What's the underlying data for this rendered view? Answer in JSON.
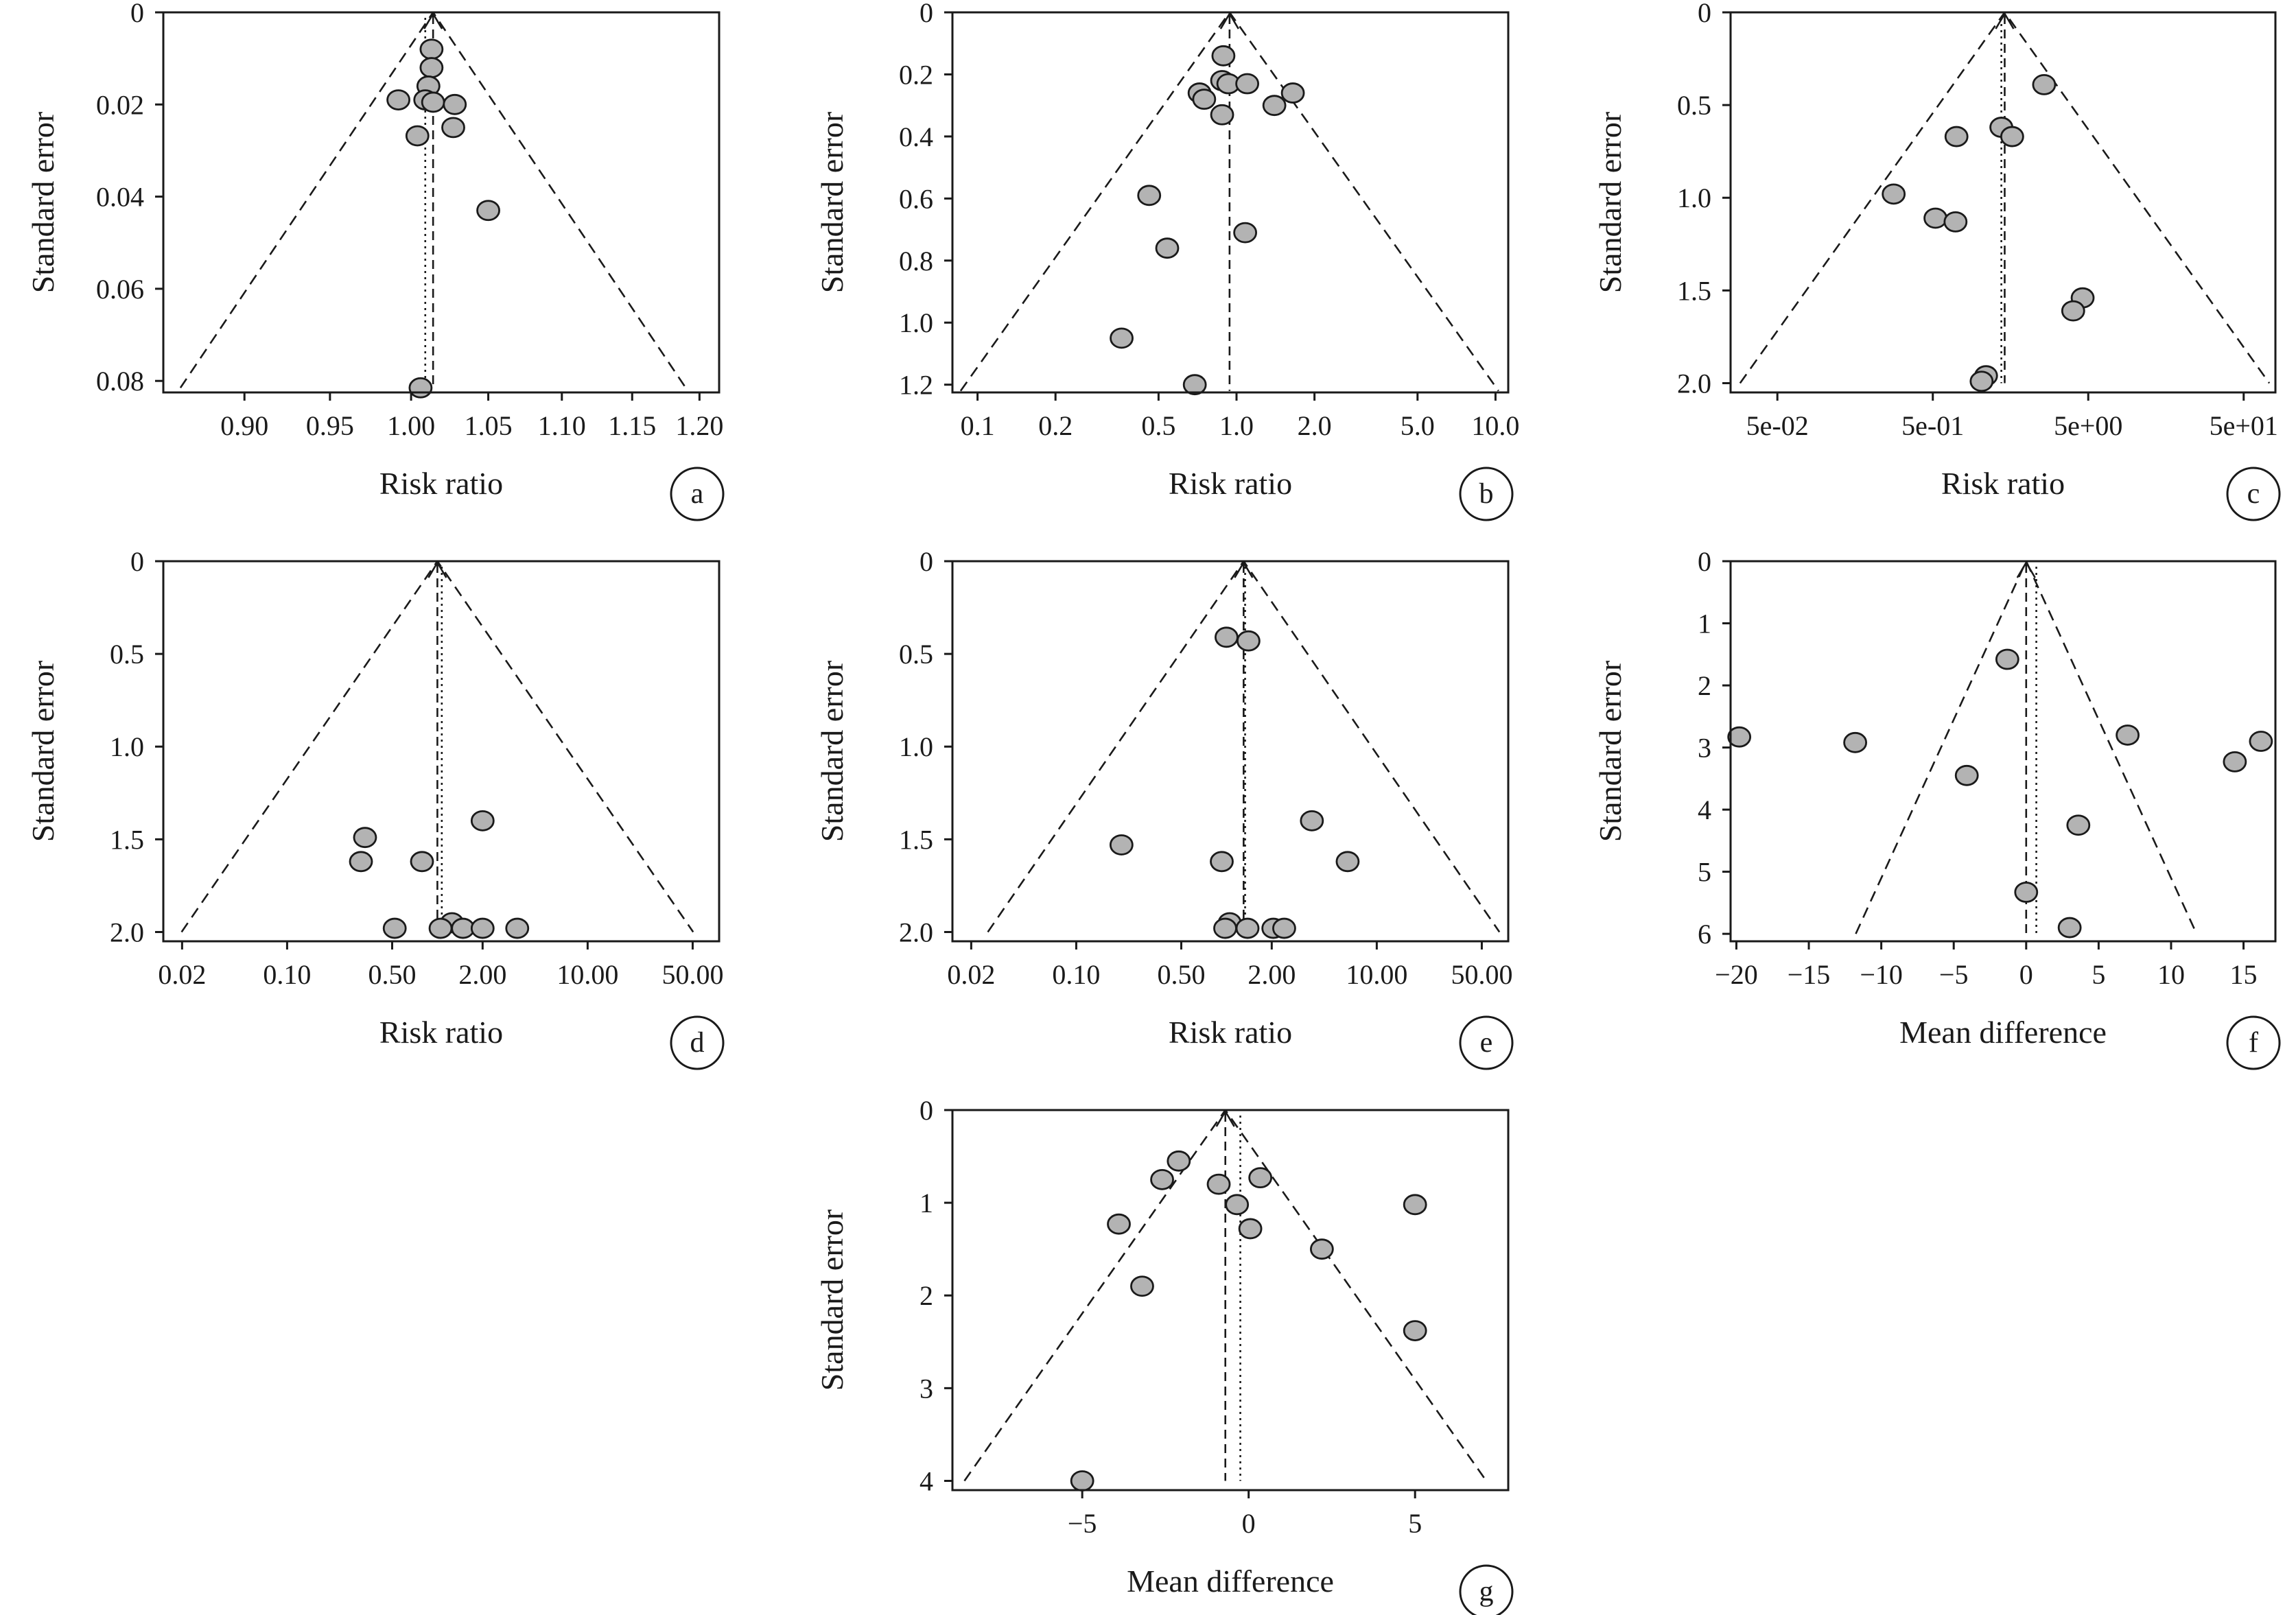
{
  "chart_data": [
    {
      "id": "a",
      "type": "scatter",
      "panel_label": "a",
      "xlabel": "Risk ratio",
      "ylabel": "Standard error",
      "x_scale": "log",
      "xlim": [
        0.855,
        1.215
      ],
      "ylim": [
        0,
        0.0825
      ],
      "x_ticks": [
        {
          "v": 0.9,
          "label": "0.90"
        },
        {
          "v": 0.95,
          "label": "0.95"
        },
        {
          "v": 1.0,
          "label": "1.00"
        },
        {
          "v": 1.05,
          "label": "1.05"
        },
        {
          "v": 1.1,
          "label": "1.10"
        },
        {
          "v": 1.15,
          "label": "1.15"
        },
        {
          "v": 1.2,
          "label": "1.20"
        }
      ],
      "y_ticks": [
        {
          "v": 0,
          "label": "0"
        },
        {
          "v": 0.02,
          "label": "0.02"
        },
        {
          "v": 0.04,
          "label": "0.04"
        },
        {
          "v": 0.06,
          "label": "0.06"
        },
        {
          "v": 0.08,
          "label": "0.08"
        }
      ],
      "pooled": 1.014,
      "fixed": 1.009,
      "funnel_bottom_se": 0.0815,
      "points": [
        [
          1.013,
          0.008
        ],
        [
          1.013,
          0.012
        ],
        [
          1.011,
          0.016
        ],
        [
          0.992,
          0.019
        ],
        [
          1.009,
          0.019
        ],
        [
          1.014,
          0.0195
        ],
        [
          1.028,
          0.02
        ],
        [
          1.027,
          0.025
        ],
        [
          1.004,
          0.0268
        ],
        [
          1.05,
          0.043
        ],
        [
          1.006,
          0.0815
        ]
      ]
    },
    {
      "id": "b",
      "type": "scatter",
      "panel_label": "b",
      "xlabel": "Risk ratio",
      "ylabel": "Standard error",
      "x_scale": "log",
      "xlim": [
        0.08,
        11.2
      ],
      "ylim": [
        0,
        1.225
      ],
      "x_ticks": [
        {
          "v": 0.1,
          "label": "0.1"
        },
        {
          "v": 0.2,
          "label": "0.2"
        },
        {
          "v": 0.5,
          "label": "0.5"
        },
        {
          "v": 1.0,
          "label": "1.0"
        },
        {
          "v": 2.0,
          "label": "2.0"
        },
        {
          "v": 5.0,
          "label": "5.0"
        },
        {
          "v": 10.0,
          "label": "10.0"
        }
      ],
      "y_ticks": [
        {
          "v": 0,
          "label": "0"
        },
        {
          "v": 0.2,
          "label": "0.2"
        },
        {
          "v": 0.4,
          "label": "0.4"
        },
        {
          "v": 0.6,
          "label": "0.6"
        },
        {
          "v": 0.8,
          "label": "0.8"
        },
        {
          "v": 1.0,
          "label": "1.0"
        },
        {
          "v": 1.2,
          "label": "1.2"
        }
      ],
      "pooled": 0.94,
      "fixed": null,
      "funnel_bottom_se": 1.22,
      "points": [
        [
          0.89,
          0.14
        ],
        [
          0.88,
          0.22
        ],
        [
          0.93,
          0.23
        ],
        [
          1.1,
          0.23
        ],
        [
          1.65,
          0.26
        ],
        [
          0.72,
          0.26
        ],
        [
          0.75,
          0.28
        ],
        [
          1.4,
          0.3
        ],
        [
          0.88,
          0.33
        ],
        [
          0.46,
          0.59
        ],
        [
          1.08,
          0.71
        ],
        [
          0.54,
          0.76
        ],
        [
          0.36,
          1.05
        ],
        [
          0.69,
          1.2
        ]
      ]
    },
    {
      "id": "c",
      "type": "scatter",
      "panel_label": "c",
      "xlabel": "Risk ratio",
      "ylabel": "Standard error",
      "x_scale": "log",
      "xlim": [
        0.025,
        80
      ],
      "ylim": [
        0,
        2.05
      ],
      "x_ticks": [
        {
          "v": 0.05,
          "label": "5e-02"
        },
        {
          "v": 0.5,
          "label": "5e-01"
        },
        {
          "v": 5,
          "label": "5e+00"
        },
        {
          "v": 50,
          "label": "5e+01"
        }
      ],
      "y_ticks": [
        {
          "v": 0,
          "label": "0"
        },
        {
          "v": 0.5,
          "label": "0.5"
        },
        {
          "v": 1.0,
          "label": "1.0"
        },
        {
          "v": 1.5,
          "label": "1.5"
        },
        {
          "v": 2.0,
          "label": "2.0"
        }
      ],
      "pooled": 1.45,
      "fixed": 1.38,
      "funnel_bottom_se": 2.0,
      "points": [
        [
          2.6,
          0.39
        ],
        [
          1.38,
          0.62
        ],
        [
          1.62,
          0.67
        ],
        [
          0.71,
          0.67
        ],
        [
          0.28,
          0.98
        ],
        [
          0.52,
          1.11
        ],
        [
          0.7,
          1.13
        ],
        [
          4.6,
          1.54
        ],
        [
          4.0,
          1.61
        ],
        [
          1.1,
          1.96
        ],
        [
          1.03,
          1.99
        ]
      ]
    },
    {
      "id": "d",
      "type": "scatter",
      "panel_label": "d",
      "xlabel": "Risk ratio",
      "ylabel": "Standard error",
      "x_scale": "log",
      "xlim": [
        0.015,
        75
      ],
      "ylim": [
        0,
        2.05
      ],
      "x_ticks": [
        {
          "v": 0.02,
          "label": "0.02"
        },
        {
          "v": 0.1,
          "label": "0.10"
        },
        {
          "v": 0.5,
          "label": "0.50"
        },
        {
          "v": 2.0,
          "label": "2.00"
        },
        {
          "v": 10.0,
          "label": "10.00"
        },
        {
          "v": 50.0,
          "label": "50.00"
        }
      ],
      "y_ticks": [
        {
          "v": 0,
          "label": "0"
        },
        {
          "v": 0.5,
          "label": "0.5"
        },
        {
          "v": 1.0,
          "label": "1.0"
        },
        {
          "v": 1.5,
          "label": "1.5"
        },
        {
          "v": 2.0,
          "label": "2.0"
        }
      ],
      "pooled": 1.0,
      "fixed": 1.07,
      "funnel_bottom_se": 2.0,
      "points": [
        [
          2.0,
          1.4
        ],
        [
          0.33,
          1.49
        ],
        [
          0.31,
          1.62
        ],
        [
          0.79,
          1.62
        ],
        [
          1.25,
          1.95
        ],
        [
          0.52,
          1.98
        ],
        [
          1.05,
          1.98
        ],
        [
          1.48,
          1.98
        ],
        [
          2.0,
          1.98
        ],
        [
          3.4,
          1.98
        ]
      ]
    },
    {
      "id": "e",
      "type": "scatter",
      "panel_label": "e",
      "xlabel": "Risk ratio",
      "ylabel": "Standard error",
      "x_scale": "log",
      "xlim": [
        0.015,
        75
      ],
      "ylim": [
        0,
        2.05
      ],
      "x_ticks": [
        {
          "v": 0.02,
          "label": "0.02"
        },
        {
          "v": 0.1,
          "label": "0.10"
        },
        {
          "v": 0.5,
          "label": "0.50"
        },
        {
          "v": 2.0,
          "label": "2.00"
        },
        {
          "v": 10.0,
          "label": "10.00"
        },
        {
          "v": 50.0,
          "label": "50.00"
        }
      ],
      "y_ticks": [
        {
          "v": 0,
          "label": "0"
        },
        {
          "v": 0.5,
          "label": "0.5"
        },
        {
          "v": 1.0,
          "label": "1.0"
        },
        {
          "v": 1.5,
          "label": "1.5"
        },
        {
          "v": 2.0,
          "label": "2.0"
        }
      ],
      "pooled": 1.3,
      "fixed": 1.33,
      "funnel_bottom_se": 2.0,
      "points": [
        [
          1.0,
          0.41
        ],
        [
          1.4,
          0.43
        ],
        [
          3.7,
          1.4
        ],
        [
          6.4,
          1.62
        ],
        [
          0.2,
          1.53
        ],
        [
          0.93,
          1.62
        ],
        [
          1.05,
          1.95
        ],
        [
          1.38,
          1.98
        ],
        [
          0.98,
          1.98
        ],
        [
          2.05,
          1.98
        ],
        [
          2.42,
          1.98
        ]
      ]
    },
    {
      "id": "f",
      "type": "scatter",
      "panel_label": "f",
      "xlabel": "Mean difference",
      "ylabel": "Standard error",
      "x_scale": "linear",
      "xlim": [
        -20.4,
        17.2
      ],
      "ylim": [
        0,
        6.12
      ],
      "x_ticks": [
        {
          "v": -20,
          "label": "−20"
        },
        {
          "v": -15,
          "label": "−15"
        },
        {
          "v": -10,
          "label": "−10"
        },
        {
          "v": -5,
          "label": "−5"
        },
        {
          "v": 0,
          "label": "0"
        },
        {
          "v": 5,
          "label": "5"
        },
        {
          "v": 10,
          "label": "10"
        },
        {
          "v": 15,
          "label": "15"
        }
      ],
      "y_ticks": [
        {
          "v": 0,
          "label": "0"
        },
        {
          "v": 1,
          "label": "1"
        },
        {
          "v": 2,
          "label": "2"
        },
        {
          "v": 3,
          "label": "3"
        },
        {
          "v": 4,
          "label": "4"
        },
        {
          "v": 5,
          "label": "5"
        },
        {
          "v": 6,
          "label": "6"
        }
      ],
      "pooled": 0.0,
      "fixed": 0.7,
      "funnel_bottom_se": 6.0,
      "points": [
        [
          -1.3,
          1.58
        ],
        [
          -19.8,
          2.83
        ],
        [
          -11.8,
          2.92
        ],
        [
          7.0,
          2.8
        ],
        [
          16.2,
          2.9
        ],
        [
          14.4,
          3.23
        ],
        [
          -4.1,
          3.45
        ],
        [
          3.6,
          4.25
        ],
        [
          0.0,
          5.33
        ],
        [
          3.0,
          5.9
        ]
      ]
    },
    {
      "id": "g",
      "type": "scatter",
      "panel_label": "g",
      "xlabel": "Mean difference",
      "ylabel": "Standard error",
      "x_scale": "linear",
      "xlim": [
        -8.9,
        7.8
      ],
      "ylim": [
        0,
        4.1
      ],
      "x_ticks": [
        {
          "v": -5,
          "label": "−5"
        },
        {
          "v": 0,
          "label": "0"
        },
        {
          "v": 5,
          "label": "5"
        }
      ],
      "y_ticks": [
        {
          "v": 0,
          "label": "0"
        },
        {
          "v": 1,
          "label": "1"
        },
        {
          "v": 2,
          "label": "2"
        },
        {
          "v": 3,
          "label": "3"
        },
        {
          "v": 4,
          "label": "4"
        }
      ],
      "pooled": -0.7,
      "fixed": -0.25,
      "funnel_bottom_se": 4.0,
      "points": [
        [
          -2.1,
          0.55
        ],
        [
          -2.6,
          0.75
        ],
        [
          -0.9,
          0.8
        ],
        [
          0.35,
          0.73
        ],
        [
          -0.35,
          1.02
        ],
        [
          5.0,
          1.02
        ],
        [
          -3.9,
          1.23
        ],
        [
          0.05,
          1.28
        ],
        [
          2.2,
          1.5
        ],
        [
          -3.2,
          1.9
        ],
        [
          5.0,
          2.38
        ],
        [
          -5.0,
          4.0
        ]
      ]
    }
  ]
}
